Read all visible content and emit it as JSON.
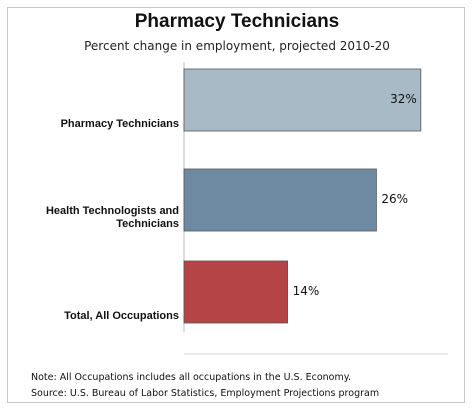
{
  "chart_data": {
    "type": "bar",
    "orientation": "horizontal",
    "title": "Pharmacy Technicians",
    "subtitle": "Percent change in employment, projected 2010-20",
    "categories": [
      [
        "Pharmacy Technicians"
      ],
      [
        "Health Technologists and",
        "Technicians"
      ],
      [
        "Total, All Occupations"
      ]
    ],
    "values": [
      32,
      26,
      14
    ],
    "value_labels": [
      "32%",
      "26%",
      "14%"
    ],
    "colors": [
      "#a9bac7",
      "#6d8aa2",
      "#b54446"
    ],
    "xlim": [
      0,
      35
    ],
    "grid": false
  },
  "notes": {
    "note": "Note: All Occupations includes all occupations in the U.S. Economy.",
    "source": "Source: U.S. Bureau of Labor Statistics, Employment Projections program"
  }
}
